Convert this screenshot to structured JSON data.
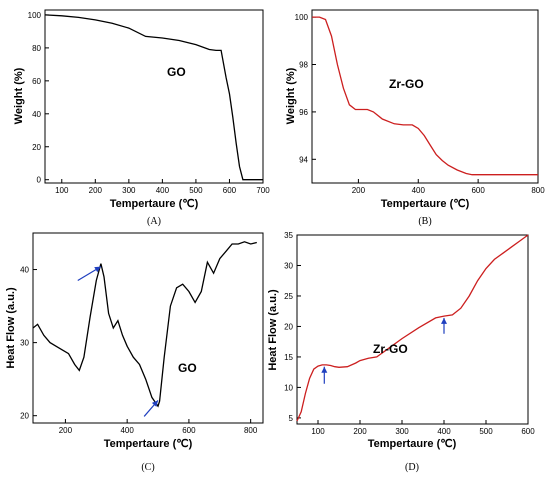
{
  "chart_data": [
    {
      "type": "line",
      "panel_label": "(A)",
      "xlabel": "Tempertaure (℃)",
      "ylabel": "Weight (%)",
      "annotation": "GO",
      "xlim": [
        50,
        700
      ],
      "ylim": [
        -2,
        103
      ],
      "xticks": [
        100,
        200,
        300,
        400,
        500,
        600,
        700
      ],
      "yticks": [
        0,
        20,
        40,
        60,
        80,
        100
      ],
      "line_color": "#000000",
      "series": [
        {
          "x": [
            50,
            100,
            150,
            200,
            250,
            300,
            350,
            400,
            450,
            500,
            540,
            560,
            575,
            590,
            600,
            610,
            620,
            630,
            640,
            645,
            660,
            700
          ],
          "y": [
            100,
            99.5,
            98.5,
            97,
            95,
            92,
            87,
            86,
            84.5,
            82,
            79,
            78.5,
            78.5,
            62,
            52,
            38,
            22,
            8,
            0,
            0,
            0,
            0
          ]
        }
      ]
    },
    {
      "type": "line",
      "panel_label": "(B)",
      "xlabel": "Tempertaure (℃)",
      "ylabel": "Weight (%)",
      "annotation": "Zr-GO",
      "xlim": [
        45,
        800
      ],
      "ylim": [
        93.0,
        100.3
      ],
      "xticks": [
        200,
        400,
        600,
        800
      ],
      "yticks": [
        94,
        96,
        98,
        100
      ],
      "line_color": "#cc1f1f",
      "series": [
        {
          "x": [
            45,
            70,
            90,
            110,
            130,
            150,
            170,
            190,
            210,
            230,
            250,
            280,
            320,
            350,
            380,
            400,
            420,
            440,
            460,
            480,
            500,
            530,
            560,
            580,
            600,
            650,
            700,
            800
          ],
          "y": [
            100,
            100,
            99.9,
            99.2,
            98,
            97,
            96.3,
            96.1,
            96.1,
            96.1,
            96,
            95.7,
            95.5,
            95.45,
            95.45,
            95.3,
            95.0,
            94.6,
            94.2,
            93.95,
            93.75,
            93.55,
            93.4,
            93.35,
            93.35,
            93.35,
            93.35,
            93.35
          ]
        }
      ]
    },
    {
      "type": "line",
      "panel_label": "(C)",
      "xlabel": "Tempertaure (℃)",
      "ylabel": "Heat Flow (a.u.)",
      "annotation": "GO",
      "xlim": [
        95,
        840
      ],
      "ylim": [
        19,
        45
      ],
      "xticks": [
        200,
        400,
        600,
        800
      ],
      "yticks": [
        20,
        30,
        40
      ],
      "line_color": "#000000",
      "series": [
        {
          "x": [
            95,
            110,
            130,
            150,
            170,
            190,
            210,
            230,
            245,
            260,
            280,
            300,
            315,
            325,
            340,
            355,
            370,
            385,
            400,
            420,
            440,
            460,
            480,
            500,
            505,
            520,
            540,
            560,
            580,
            600,
            620,
            640,
            660,
            680,
            700,
            720,
            740,
            760,
            780,
            800,
            820
          ],
          "y": [
            32,
            32.5,
            31,
            30,
            29.5,
            29,
            28.5,
            27,
            26.2,
            28,
            33.5,
            38.5,
            40.8,
            39,
            34,
            32,
            33,
            31,
            29.5,
            28,
            27,
            25,
            22.5,
            21.3,
            22,
            28,
            35,
            37.5,
            38,
            37,
            35.5,
            37,
            41,
            39.5,
            41.5,
            42.5,
            43.5,
            43.5,
            43.8,
            43.5,
            43.7
          ]
        }
      ],
      "arrows": [
        {
          "tip": [
            315,
            40.4
          ],
          "tail": [
            240,
            38.5
          ]
        },
        {
          "tip": [
            500,
            22.1
          ],
          "tail": [
            455,
            19.9
          ]
        }
      ]
    },
    {
      "type": "line",
      "panel_label": "(D)",
      "xlabel": "Tempertaure (℃)",
      "ylabel": "Heat Flow (a.u.)",
      "annotation": "Zr-GO",
      "xlim": [
        50,
        600
      ],
      "ylim": [
        4,
        35
      ],
      "xticks": [
        100,
        200,
        300,
        400,
        500,
        600
      ],
      "yticks": [
        5,
        10,
        15,
        20,
        25,
        30,
        35
      ],
      "line_color": "#cc1f1f",
      "series": [
        {
          "x": [
            50,
            60,
            70,
            80,
            90,
            100,
            110,
            120,
            130,
            140,
            150,
            170,
            190,
            200,
            220,
            240,
            260,
            300,
            340,
            380,
            400,
            420,
            440,
            460,
            480,
            500,
            520,
            540,
            560,
            580,
            600
          ],
          "y": [
            4.5,
            6,
            9,
            11.5,
            13,
            13.5,
            13.7,
            13.7,
            13.6,
            13.4,
            13.3,
            13.4,
            14,
            14.4,
            14.8,
            15,
            16,
            18,
            19.8,
            21.4,
            21.7,
            21.9,
            23,
            25,
            27.5,
            29.5,
            31,
            32,
            33,
            34,
            35
          ]
        }
      ],
      "arrows": [
        {
          "tip": [
            115,
            13.4
          ],
          "tail": [
            115,
            10.6
          ]
        },
        {
          "tip": [
            400,
            21.4
          ],
          "tail": [
            400,
            18.8
          ]
        }
      ]
    }
  ]
}
